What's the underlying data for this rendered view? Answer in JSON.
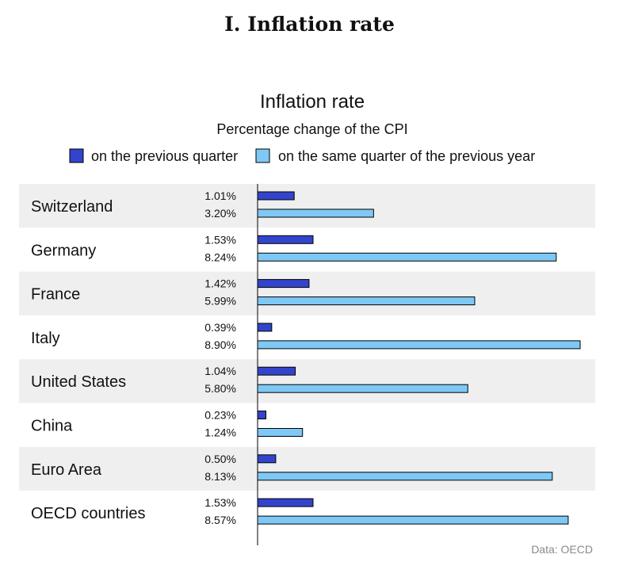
{
  "page": {
    "heading": "I. Inflation rate"
  },
  "chart_data": {
    "type": "bar",
    "orientation": "horizontal",
    "title": "Inflation rate",
    "subtitle": "Percentage change of the CPI",
    "source": "Data: OECD",
    "legend_position": "top",
    "categories": [
      "Switzerland",
      "Germany",
      "France",
      "Italy",
      "United States",
      "China",
      "Euro Area",
      "OECD countries"
    ],
    "series": [
      {
        "name": "on the previous quarter",
        "color": "#3344cc",
        "values": [
          1.01,
          1.53,
          1.42,
          0.39,
          1.04,
          0.23,
          0.5,
          1.53
        ],
        "labels": [
          "1.01%",
          "1.53%",
          "1.42%",
          "0.39%",
          "1.04%",
          "0.23%",
          "0.50%",
          "1.53%"
        ]
      },
      {
        "name": "on the same quarter of the previous year",
        "color": "#7ec8f5",
        "values": [
          3.2,
          8.24,
          5.99,
          8.9,
          5.8,
          1.24,
          8.13,
          8.57
        ],
        "labels": [
          "3.20%",
          "8.24%",
          "5.99%",
          "8.90%",
          "5.80%",
          "1.24%",
          "8.13%",
          "8.57%"
        ]
      }
    ],
    "xlim": [
      0,
      9
    ],
    "row_band_colors": [
      "#efefef",
      "#ffffff"
    ]
  }
}
